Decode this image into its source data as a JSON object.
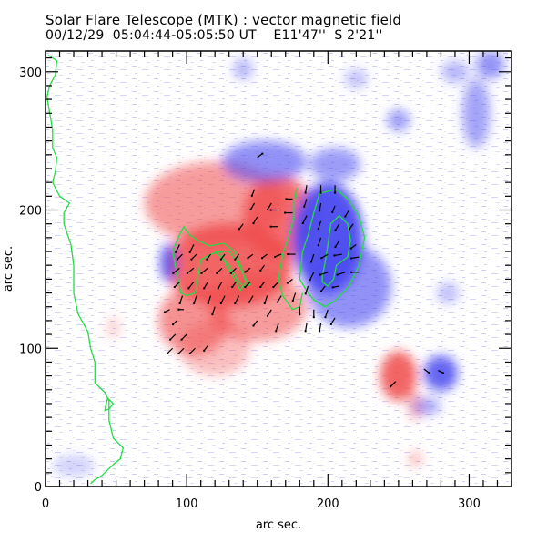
{
  "header": {
    "title": "Solar Flare Telescope (MTK) : vector magnetic field",
    "date": "00/12/29",
    "time_range": "05:04:44-05:05:50 UT",
    "position_ew": "E11'47''",
    "position_ns": "S 2'21''"
  },
  "colors": {
    "positive": "#f04a4a",
    "negative": "#4a4af0",
    "contour": "#22dd44",
    "vector": "#000000",
    "frame": "#000000"
  },
  "chart_data": {
    "type": "heatmap",
    "title": "Solar Flare Telescope (MTK) : vector magnetic field",
    "xlabel": "arc sec.",
    "ylabel": "arc sec.",
    "xlim": [
      0,
      330
    ],
    "ylim": [
      0,
      315
    ],
    "xticks": [
      0,
      100,
      200,
      300
    ],
    "yticks": [
      0,
      100,
      200,
      300
    ],
    "x_minor_step": 10,
    "y_minor_step": 10,
    "grid": false,
    "legend": "none",
    "polarity_regions": [
      {
        "polarity": "positive",
        "x": 120,
        "y": 205,
        "rx": 50,
        "ry": 30,
        "strength": 0.55
      },
      {
        "polarity": "positive",
        "x": 130,
        "y": 160,
        "rx": 45,
        "ry": 30,
        "strength": 0.85
      },
      {
        "polarity": "positive",
        "x": 105,
        "y": 120,
        "rx": 25,
        "ry": 25,
        "strength": 0.6
      },
      {
        "polarity": "positive",
        "x": 165,
        "y": 195,
        "rx": 25,
        "ry": 30,
        "strength": 0.8
      },
      {
        "polarity": "positive",
        "x": 150,
        "y": 130,
        "rx": 35,
        "ry": 25,
        "strength": 0.55
      },
      {
        "polarity": "positive",
        "x": 120,
        "y": 100,
        "rx": 25,
        "ry": 20,
        "strength": 0.35
      },
      {
        "polarity": "positive",
        "x": 250,
        "y": 80,
        "rx": 13,
        "ry": 18,
        "strength": 0.85
      },
      {
        "polarity": "positive",
        "x": 262,
        "y": 58,
        "rx": 5,
        "ry": 10,
        "strength": 0.45
      },
      {
        "polarity": "positive",
        "x": 262,
        "y": 20,
        "rx": 5,
        "ry": 6,
        "strength": 0.35
      },
      {
        "polarity": "positive",
        "x": 48,
        "y": 115,
        "rx": 5,
        "ry": 8,
        "strength": 0.25
      },
      {
        "polarity": "negative",
        "x": 200,
        "y": 180,
        "rx": 25,
        "ry": 40,
        "strength": 0.95
      },
      {
        "polarity": "negative",
        "x": 215,
        "y": 145,
        "rx": 30,
        "ry": 30,
        "strength": 0.6
      },
      {
        "polarity": "negative",
        "x": 87,
        "y": 162,
        "rx": 6,
        "ry": 14,
        "strength": 0.8
      },
      {
        "polarity": "negative",
        "x": 155,
        "y": 235,
        "rx": 30,
        "ry": 15,
        "strength": 0.6
      },
      {
        "polarity": "negative",
        "x": 205,
        "y": 233,
        "rx": 18,
        "ry": 12,
        "strength": 0.55
      },
      {
        "polarity": "negative",
        "x": 280,
        "y": 82,
        "rx": 12,
        "ry": 13,
        "strength": 0.85
      },
      {
        "polarity": "negative",
        "x": 270,
        "y": 58,
        "rx": 10,
        "ry": 6,
        "strength": 0.5
      },
      {
        "polarity": "negative",
        "x": 250,
        "y": 265,
        "rx": 8,
        "ry": 8,
        "strength": 0.55
      },
      {
        "polarity": "negative",
        "x": 305,
        "y": 270,
        "rx": 10,
        "ry": 25,
        "strength": 0.5
      },
      {
        "polarity": "negative",
        "x": 315,
        "y": 305,
        "rx": 10,
        "ry": 10,
        "strength": 0.6
      },
      {
        "polarity": "negative",
        "x": 290,
        "y": 300,
        "rx": 10,
        "ry": 8,
        "strength": 0.4
      },
      {
        "polarity": "negative",
        "x": 140,
        "y": 302,
        "rx": 7,
        "ry": 8,
        "strength": 0.4
      },
      {
        "polarity": "negative",
        "x": 220,
        "y": 295,
        "rx": 8,
        "ry": 7,
        "strength": 0.35
      },
      {
        "polarity": "negative",
        "x": 285,
        "y": 140,
        "rx": 8,
        "ry": 8,
        "strength": 0.35
      },
      {
        "polarity": "negative",
        "x": 20,
        "y": 15,
        "rx": 15,
        "ry": 8,
        "strength": 0.25
      }
    ],
    "contours": [
      {
        "name": "limb",
        "points": [
          [
            2,
            312
          ],
          [
            8,
            308
          ],
          [
            7,
            298
          ],
          [
            3,
            290
          ],
          [
            1,
            282
          ],
          [
            3,
            270
          ],
          [
            5,
            258
          ],
          [
            5,
            245
          ],
          [
            8,
            238
          ],
          [
            7,
            228
          ],
          [
            5,
            220
          ],
          [
            10,
            210
          ],
          [
            17,
            205
          ],
          [
            13,
            198
          ],
          [
            13,
            190
          ],
          [
            18,
            175
          ],
          [
            20,
            160
          ],
          [
            20,
            140
          ],
          [
            23,
            125
          ],
          [
            30,
            112
          ],
          [
            32,
            100
          ],
          [
            35,
            90
          ],
          [
            35,
            75
          ],
          [
            42,
            68
          ],
          [
            45,
            62
          ],
          [
            45,
            48
          ],
          [
            48,
            35
          ],
          [
            55,
            28
          ],
          [
            53,
            20
          ],
          [
            48,
            16
          ],
          [
            40,
            8
          ],
          [
            35,
            5
          ],
          [
            32,
            2
          ]
        ]
      },
      {
        "name": "limb-islet",
        "points": [
          [
            44,
            64
          ],
          [
            48,
            60
          ],
          [
            45,
            56
          ],
          [
            42,
            55
          ],
          [
            43,
            60
          ],
          [
            44,
            64
          ]
        ]
      },
      {
        "name": "plage-pos-1",
        "points": [
          [
            92,
            160
          ],
          [
            90,
            170
          ],
          [
            94,
            180
          ],
          [
            98,
            188
          ],
          [
            102,
            182
          ],
          [
            108,
            178
          ],
          [
            116,
            174
          ],
          [
            126,
            176
          ],
          [
            134,
            170
          ],
          [
            138,
            160
          ],
          [
            142,
            148
          ],
          [
            138,
            142
          ],
          [
            134,
            150
          ],
          [
            128,
            160
          ],
          [
            124,
            170
          ],
          [
            117,
            168
          ],
          [
            110,
            164
          ],
          [
            108,
            152
          ],
          [
            106,
            140
          ],
          [
            100,
            138
          ],
          [
            96,
            140
          ],
          [
            94,
            150
          ],
          [
            92,
            160
          ]
        ]
      },
      {
        "name": "plage-pos-2",
        "points": [
          [
            120,
            170
          ],
          [
            130,
            170
          ],
          [
            136,
            162
          ],
          [
            142,
            150
          ],
          [
            145,
            146
          ],
          [
            140,
            144
          ],
          [
            136,
            150
          ],
          [
            130,
            160
          ],
          [
            124,
            166
          ],
          [
            120,
            170
          ]
        ]
      },
      {
        "name": "negative-core-outer",
        "points": [
          [
            180,
            150
          ],
          [
            182,
            170
          ],
          [
            186,
            182
          ],
          [
            190,
            198
          ],
          [
            194,
            212
          ],
          [
            206,
            215
          ],
          [
            214,
            208
          ],
          [
            222,
            196
          ],
          [
            226,
            180
          ],
          [
            222,
            160
          ],
          [
            215,
            145
          ],
          [
            206,
            135
          ],
          [
            198,
            130
          ],
          [
            190,
            135
          ],
          [
            186,
            140
          ],
          [
            180,
            150
          ]
        ]
      },
      {
        "name": "negative-core-inner",
        "points": [
          [
            196,
            152
          ],
          [
            198,
            162
          ],
          [
            200,
            175
          ],
          [
            202,
            190
          ],
          [
            208,
            196
          ],
          [
            214,
            190
          ],
          [
            216,
            178
          ],
          [
            214,
            166
          ],
          [
            206,
            160
          ],
          [
            204,
            150
          ],
          [
            200,
            145
          ],
          [
            196,
            148
          ],
          [
            196,
            152
          ]
        ]
      },
      {
        "name": "pos-edge-right",
        "points": [
          [
            178,
            216
          ],
          [
            176,
            206
          ],
          [
            176,
            195
          ],
          [
            172,
            180
          ],
          [
            168,
            168
          ],
          [
            165,
            150
          ],
          [
            168,
            138
          ],
          [
            175,
            128
          ],
          [
            180,
            130
          ],
          [
            182,
            140
          ]
        ]
      }
    ],
    "vectors": [
      [
        95,
        175,
        -3,
        -6
      ],
      [
        105,
        175,
        -3,
        -6
      ],
      [
        95,
        158,
        -5,
        -4
      ],
      [
        105,
        158,
        -5,
        -4
      ],
      [
        115,
        158,
        -5,
        -4
      ],
      [
        125,
        158,
        -4,
        -4
      ],
      [
        135,
        158,
        -4,
        -4
      ],
      [
        145,
        158,
        -4,
        -3
      ],
      [
        155,
        160,
        -3,
        -4
      ],
      [
        95,
        148,
        -4,
        -4
      ],
      [
        105,
        148,
        -4,
        -5
      ],
      [
        115,
        148,
        -3,
        -5
      ],
      [
        125,
        148,
        -3,
        -5
      ],
      [
        135,
        148,
        -3,
        -4
      ],
      [
        145,
        148,
        -4,
        -4
      ],
      [
        155,
        148,
        -3,
        -4
      ],
      [
        165,
        148,
        -4,
        -4
      ],
      [
        175,
        150,
        -4,
        -3
      ],
      [
        97,
        138,
        -2,
        -6
      ],
      [
        107,
        138,
        -2,
        -6
      ],
      [
        117,
        138,
        -2,
        -6
      ],
      [
        127,
        138,
        -3,
        -6
      ],
      [
        137,
        138,
        -3,
        -6
      ],
      [
        147,
        138,
        -3,
        -5
      ],
      [
        157,
        138,
        -2,
        -6
      ],
      [
        167,
        138,
        -3,
        -5
      ],
      [
        177,
        140,
        -2,
        -6
      ],
      [
        97,
        168,
        -4,
        -4
      ],
      [
        107,
        168,
        -4,
        -4
      ],
      [
        117,
        168,
        -3,
        -4
      ],
      [
        127,
        168,
        -3,
        -4
      ],
      [
        137,
        168,
        -3,
        -4
      ],
      [
        147,
        168,
        -4,
        -3
      ],
      [
        157,
        168,
        -4,
        -3
      ],
      [
        167,
        168,
        -5,
        -2
      ],
      [
        177,
        168,
        -6,
        0
      ],
      [
        140,
        190,
        -3,
        -4
      ],
      [
        150,
        195,
        -3,
        -5
      ],
      [
        148,
        205,
        -3,
        -5
      ],
      [
        148,
        215,
        -2,
        -5
      ],
      [
        160,
        205,
        -3,
        -5
      ],
      [
        165,
        188,
        -6,
        0
      ],
      [
        165,
        200,
        -6,
        0
      ],
      [
        175,
        198,
        -6,
        0
      ],
      [
        175,
        208,
        -5,
        0
      ],
      [
        185,
        218,
        -1,
        -6
      ],
      [
        195,
        218,
        0,
        -6
      ],
      [
        205,
        218,
        0,
        -6
      ],
      [
        185,
        208,
        -2,
        -6
      ],
      [
        195,
        205,
        -1,
        -6
      ],
      [
        205,
        203,
        -2,
        -5
      ],
      [
        215,
        200,
        -3,
        -5
      ],
      [
        185,
        196,
        -3,
        -6
      ],
      [
        195,
        192,
        -2,
        -6
      ],
      [
        208,
        190,
        -3,
        -5
      ],
      [
        218,
        190,
        -3,
        -4
      ],
      [
        195,
        180,
        -2,
        -6
      ],
      [
        208,
        178,
        -3,
        -5
      ],
      [
        220,
        175,
        -4,
        -3
      ],
      [
        190,
        168,
        -2,
        -6
      ],
      [
        200,
        168,
        -5,
        -3
      ],
      [
        210,
        168,
        -6,
        -1
      ],
      [
        222,
        166,
        -6,
        -1
      ],
      [
        190,
        155,
        -3,
        -6
      ],
      [
        200,
        155,
        -6,
        -2
      ],
      [
        212,
        155,
        -6,
        -2
      ],
      [
        222,
        155,
        -6,
        0
      ],
      [
        186,
        145,
        -2,
        -6
      ],
      [
        198,
        145,
        -3,
        -4
      ],
      [
        208,
        145,
        -5,
        -1
      ],
      [
        180,
        130,
        0,
        -6
      ],
      [
        190,
        128,
        0,
        -6
      ],
      [
        200,
        128,
        -2,
        -6
      ],
      [
        185,
        118,
        -1,
        -6
      ],
      [
        195,
        118,
        -1,
        -6
      ],
      [
        205,
        122,
        -3,
        -5
      ],
      [
        88,
        128,
        -4,
        -2
      ],
      [
        98,
        128,
        -4,
        0
      ],
      [
        93,
        120,
        -3,
        -3
      ],
      [
        92,
        110,
        -4,
        -4
      ],
      [
        100,
        110,
        -4,
        -4
      ],
      [
        90,
        100,
        -4,
        -4
      ],
      [
        98,
        100,
        -4,
        -4
      ],
      [
        106,
        100,
        -4,
        -4
      ],
      [
        115,
        102,
        -3,
        -4
      ],
      [
        120,
        130,
        -2,
        -6
      ],
      [
        160,
        128,
        -3,
        -5
      ],
      [
        165,
        118,
        -2,
        -6
      ],
      [
        150,
        120,
        -3,
        -4
      ],
      [
        150,
        238,
        4,
        3
      ],
      [
        248,
        76,
        -4,
        -4
      ],
      [
        268,
        85,
        4,
        -3
      ],
      [
        278,
        84,
        4,
        -2
      ]
    ]
  }
}
